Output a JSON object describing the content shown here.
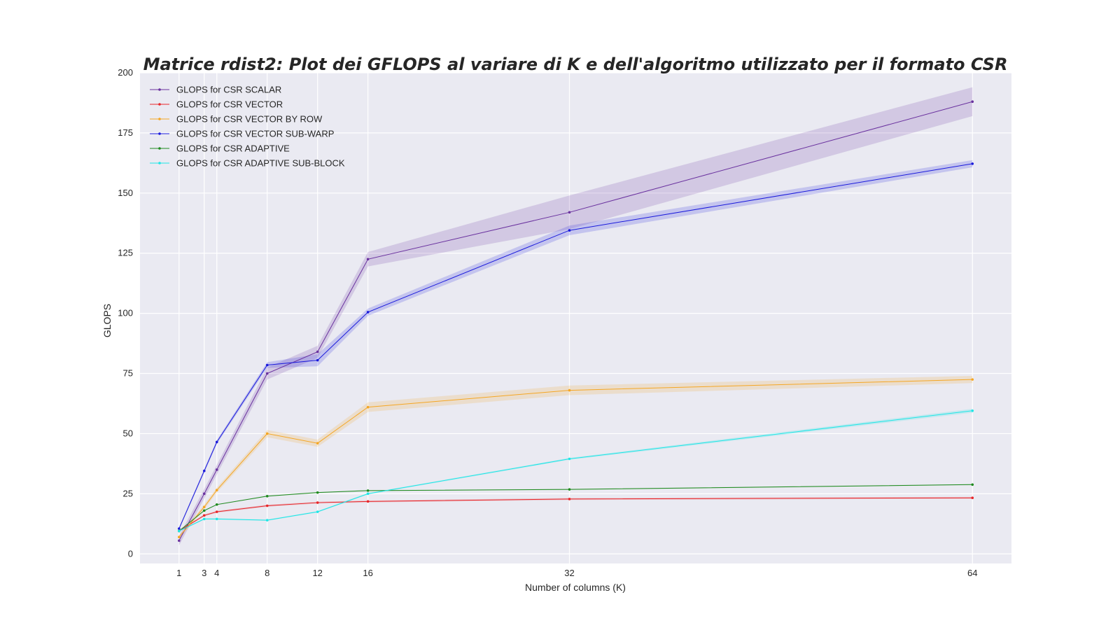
{
  "chart_data": {
    "type": "line",
    "title": "Matrice rdist2: Plot dei GFLOPS al variare di K e dell'algoritmo utilizzato per il formato CSR",
    "xlabel": "Number of columns (K)",
    "ylabel": "GLOPS",
    "x": [
      1,
      3,
      4,
      8,
      12,
      16,
      32,
      64
    ],
    "xticks": [
      "1",
      "3",
      "4",
      "8",
      "12",
      "16",
      "32",
      "64"
    ],
    "yticks": [
      "0",
      "25",
      "50",
      "75",
      "100",
      "125",
      "150",
      "175",
      "200"
    ],
    "xlim": [
      -2.1,
      67.1
    ],
    "ylim": [
      -4,
      200
    ],
    "grid": true,
    "legend_position": "top-left",
    "series": [
      {
        "name": "GLOPS for CSR SCALAR",
        "color": "#6a329f",
        "values": [
          5.5,
          25,
          35,
          75,
          84,
          122.5,
          142,
          188
        ],
        "band": [
          2,
          2,
          2,
          2.5,
          2.5,
          3,
          7,
          6
        ]
      },
      {
        "name": "GLOPS for CSR VECTOR",
        "color": "#e8262a",
        "values": [
          9.5,
          16,
          17.5,
          20,
          21.3,
          21.8,
          22.8,
          23.3
        ],
        "band": [
          0.4,
          0.4,
          0.4,
          0.4,
          0.4,
          0.4,
          0.4,
          0.4
        ]
      },
      {
        "name": "GLOPS for CSR VECTOR BY ROW",
        "color": "#f5a623",
        "values": [
          7,
          19.5,
          26.5,
          50,
          46,
          61,
          68,
          72.5
        ],
        "band": [
          0.6,
          1,
          1,
          1.5,
          1.5,
          2,
          2,
          1.5
        ]
      },
      {
        "name": "GLOPS for CSR VECTOR SUB-WARP",
        "color": "#1a1adb",
        "values": [
          10.5,
          34.5,
          46.5,
          78.5,
          80.5,
          100.5,
          134.5,
          162.2
        ],
        "band": [
          0.5,
          0.8,
          0.8,
          1.2,
          2.5,
          1.5,
          2,
          1.5
        ]
      },
      {
        "name": "GLOPS for CSR ADAPTIVE",
        "color": "#1f8a1f",
        "values": [
          9.5,
          18,
          20.5,
          24,
          25.5,
          26.3,
          26.8,
          28.8
        ],
        "band": [
          0.2,
          0.2,
          0.2,
          0.2,
          0.2,
          0.2,
          0.2,
          0.2
        ]
      },
      {
        "name": "GLOPS for CSR ADAPTIVE SUB-BLOCK",
        "color": "#1ee6e6",
        "values": [
          9.5,
          14.5,
          14.5,
          14,
          17.5,
          25,
          39.5,
          59.5
        ],
        "band": [
          0.3,
          0.3,
          0.3,
          0.3,
          0.3,
          0.3,
          0.4,
          0.8
        ]
      }
    ]
  }
}
